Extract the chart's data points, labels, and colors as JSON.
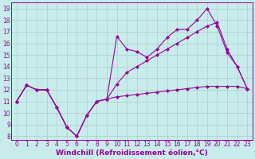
{
  "xlabel": "Windchill (Refroidissement éolien,°C)",
  "bg_color": "#c8ecec",
  "line_color": "#990099",
  "grid_color": "#aaddcc",
  "xlim": [
    -0.5,
    23.5
  ],
  "ylim": [
    7.7,
    19.5
  ],
  "xticks": [
    0,
    1,
    2,
    3,
    4,
    5,
    6,
    7,
    8,
    9,
    10,
    11,
    12,
    13,
    14,
    15,
    16,
    17,
    18,
    19,
    20,
    21,
    22,
    23
  ],
  "yticks": [
    8,
    9,
    10,
    11,
    12,
    13,
    14,
    15,
    16,
    17,
    18,
    19
  ],
  "line1_x": [
    0,
    1,
    2,
    3,
    4,
    5,
    6,
    7,
    8,
    9,
    10,
    11,
    12,
    13,
    14,
    15,
    16,
    17,
    18,
    19,
    20,
    21,
    22,
    23
  ],
  "line1_y": [
    11.0,
    12.4,
    12.0,
    12.0,
    10.5,
    8.8,
    8.0,
    9.8,
    11.0,
    11.2,
    11.4,
    11.5,
    11.6,
    11.7,
    11.8,
    11.9,
    12.0,
    12.1,
    12.2,
    12.3,
    12.3,
    12.3,
    12.3,
    12.1
  ],
  "line2_x": [
    0,
    1,
    2,
    3,
    4,
    5,
    6,
    7,
    8,
    9,
    10,
    11,
    12,
    13,
    14,
    15,
    16,
    17,
    18,
    19,
    20,
    21,
    22,
    23
  ],
  "line2_y": [
    11.0,
    12.4,
    12.0,
    12.0,
    10.5,
    8.8,
    8.0,
    9.8,
    11.0,
    11.2,
    16.6,
    15.5,
    15.3,
    14.8,
    15.5,
    16.5,
    17.2,
    17.2,
    18.0,
    19.0,
    17.5,
    15.2,
    14.0,
    12.1
  ],
  "line3_x": [
    0,
    1,
    2,
    3,
    4,
    5,
    6,
    7,
    8,
    9,
    10,
    11,
    12,
    13,
    14,
    15,
    16,
    17,
    18,
    19,
    20,
    21,
    22,
    23
  ],
  "line3_y": [
    11.0,
    12.4,
    12.0,
    12.0,
    10.5,
    8.8,
    8.0,
    9.8,
    11.0,
    11.2,
    12.5,
    13.5,
    14.0,
    14.5,
    15.0,
    15.5,
    16.0,
    16.5,
    17.0,
    17.5,
    17.8,
    15.5,
    14.0,
    12.1
  ],
  "tick_fontsize": 5.5,
  "xlabel_fontsize": 6.5,
  "markersize": 2.5
}
